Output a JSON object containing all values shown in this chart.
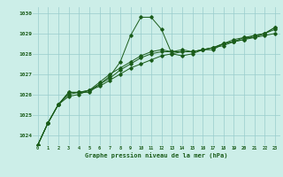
{
  "xlabel": "Graphe pression niveau de la mer (hPa)",
  "x": [
    0,
    1,
    2,
    3,
    4,
    5,
    6,
    7,
    8,
    9,
    10,
    11,
    12,
    13,
    14,
    15,
    16,
    17,
    18,
    19,
    20,
    21,
    22,
    23
  ],
  "line1": [
    1023.5,
    1024.6,
    1025.5,
    1026.1,
    1026.1,
    1026.1,
    1026.5,
    1026.9,
    1027.6,
    1028.9,
    1029.8,
    1029.8,
    1029.2,
    1028.0,
    1027.9,
    1028.0,
    1028.2,
    1028.2,
    1028.5,
    1028.7,
    1028.8,
    1028.8,
    1029.0,
    1029.3
  ],
  "line2": [
    1023.5,
    1024.6,
    1025.5,
    1026.1,
    1026.1,
    1026.2,
    1026.6,
    1027.0,
    1027.3,
    1027.6,
    1027.9,
    1028.1,
    1028.2,
    1028.1,
    1028.1,
    1028.1,
    1028.2,
    1028.3,
    1028.5,
    1028.6,
    1028.7,
    1028.8,
    1028.9,
    1029.0
  ],
  "line3": [
    1023.5,
    1024.6,
    1025.5,
    1026.0,
    1026.1,
    1026.2,
    1026.5,
    1026.8,
    1027.2,
    1027.5,
    1027.8,
    1028.0,
    1028.1,
    1028.1,
    1028.2,
    1028.1,
    1028.2,
    1028.3,
    1028.4,
    1028.6,
    1028.7,
    1028.9,
    1029.0,
    1029.3
  ],
  "line4": [
    1023.5,
    1024.6,
    1025.5,
    1025.9,
    1026.0,
    1026.2,
    1026.4,
    1026.7,
    1027.0,
    1027.3,
    1027.5,
    1027.7,
    1027.9,
    1028.0,
    1028.1,
    1028.1,
    1028.2,
    1028.3,
    1028.5,
    1028.6,
    1028.8,
    1028.9,
    1029.0,
    1029.2
  ],
  "bg_color": "#cceee8",
  "line_color": "#1a5c1a",
  "grid_color": "#99cccc",
  "label_color": "#1a5c1a",
  "ylim": [
    1023.5,
    1030.3
  ],
  "yticks": [
    1024,
    1025,
    1026,
    1027,
    1028,
    1029,
    1030
  ]
}
